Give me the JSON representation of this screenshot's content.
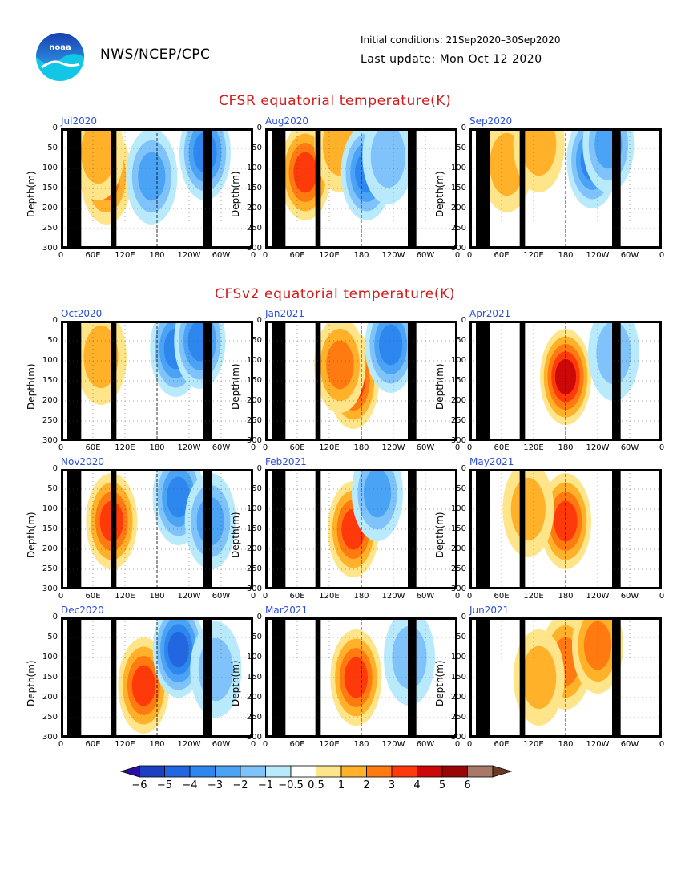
{
  "header": {
    "org": "NWS/NCEP/CPC",
    "initial_conditions": "Initial conditions: 21Sep2020–30Sep2020",
    "last_update": "Last update: Mon Oct 12 2020",
    "logo_text": "noaa"
  },
  "section_titles": {
    "cfsr": "CFSR equatorial temperature(K)",
    "cfsv2": "CFSv2 equatorial temperature(K)"
  },
  "axis": {
    "ylabel": "Depth(m)",
    "y_ticks": [
      "0",
      "50",
      "100",
      "150",
      "200",
      "250",
      "300"
    ],
    "x_ticks": [
      "0",
      "60E",
      "120E",
      "180",
      "120W",
      "60W",
      "0"
    ]
  },
  "colorbar": {
    "labels": [
      "−6",
      "−5",
      "−4",
      "−3",
      "−2",
      "−1",
      "−0.5",
      "0.5",
      "1",
      "2",
      "3",
      "4",
      "5",
      "6"
    ],
    "colors": [
      "#2a0fa5",
      "#1d3fc4",
      "#2266e0",
      "#2e86ef",
      "#4aa3f5",
      "#7fc3fa",
      "#b8eafc",
      "#ffffff",
      "#ffe58a",
      "#ffb12a",
      "#ff7a10",
      "#ff3a0a",
      "#cc0808",
      "#9a0606",
      "#a87868",
      "#6b3a22"
    ]
  },
  "chart_data": [
    {
      "type": "heatmap",
      "title": "Jul2020",
      "source": "CFSR",
      "ylim": [
        0,
        300
      ],
      "xlim": [
        "0",
        "0"
      ],
      "blobs": [
        {
          "lon": 85,
          "depth": 120,
          "anomaly": 2.5
        },
        {
          "lon": 70,
          "depth": 60,
          "anomaly": 1
        },
        {
          "lon": 170,
          "depth": 120,
          "anomaly": -1.5
        },
        {
          "lon": 270,
          "depth": 60,
          "anomaly": -2
        }
      ]
    },
    {
      "type": "heatmap",
      "title": "Aug2020",
      "source": "CFSR",
      "ylim": [
        0,
        300
      ],
      "xlim": [
        "0",
        "0"
      ],
      "blobs": [
        {
          "lon": 75,
          "depth": 110,
          "anomaly": 3
        },
        {
          "lon": 140,
          "depth": 40,
          "anomaly": 1
        },
        {
          "lon": 190,
          "depth": 110,
          "anomaly": -2
        },
        {
          "lon": 230,
          "depth": 70,
          "anomaly": -1
        }
      ]
    },
    {
      "type": "heatmap",
      "title": "Sep2020",
      "source": "CFSR",
      "ylim": [
        0,
        300
      ],
      "xlim": [
        "0",
        "0"
      ],
      "blobs": [
        {
          "lon": 70,
          "depth": 90,
          "anomaly": 1
        },
        {
          "lon": 130,
          "depth": 40,
          "anomaly": 1
        },
        {
          "lon": 230,
          "depth": 80,
          "anomaly": -2
        },
        {
          "lon": 260,
          "depth": 40,
          "anomaly": -1.5
        }
      ]
    },
    {
      "type": "heatmap",
      "title": "Oct2020",
      "source": "CFSv2",
      "ylim": [
        0,
        300
      ],
      "xlim": [
        "0",
        "0"
      ],
      "blobs": [
        {
          "lon": 75,
          "depth": 90,
          "anomaly": 1.5
        },
        {
          "lon": 215,
          "depth": 70,
          "anomaly": -2
        },
        {
          "lon": 260,
          "depth": 50,
          "anomaly": -2
        }
      ]
    },
    {
      "type": "heatmap",
      "title": "Jan2021",
      "source": "CFSv2",
      "ylim": [
        0,
        300
      ],
      "xlim": [
        "0",
        "0"
      ],
      "blobs": [
        {
          "lon": 165,
          "depth": 150,
          "anomaly": 3.5
        },
        {
          "lon": 140,
          "depth": 110,
          "anomaly": 2
        },
        {
          "lon": 235,
          "depth": 60,
          "anomaly": -2.5
        }
      ]
    },
    {
      "type": "heatmap",
      "title": "Apr2021",
      "source": "CFSv2",
      "ylim": [
        0,
        300
      ],
      "xlim": [
        "0",
        "0"
      ],
      "blobs": [
        {
          "lon": 180,
          "depth": 140,
          "anomaly": 4
        },
        {
          "lon": 270,
          "depth": 80,
          "anomaly": -1
        }
      ]
    },
    {
      "type": "heatmap",
      "title": "Nov2020",
      "source": "CFSv2",
      "ylim": [
        0,
        300
      ],
      "xlim": [
        "0",
        "0"
      ],
      "blobs": [
        {
          "lon": 95,
          "depth": 130,
          "anomaly": 3
        },
        {
          "lon": 220,
          "depth": 70,
          "anomaly": -2.5
        },
        {
          "lon": 280,
          "depth": 130,
          "anomaly": -1.5
        }
      ]
    },
    {
      "type": "heatmap",
      "title": "Feb2021",
      "source": "CFSv2",
      "ylim": [
        0,
        300
      ],
      "xlim": [
        "0",
        "0"
      ],
      "blobs": [
        {
          "lon": 165,
          "depth": 150,
          "anomaly": 3
        },
        {
          "lon": 210,
          "depth": 60,
          "anomaly": -1.5
        }
      ]
    },
    {
      "type": "heatmap",
      "title": "May2021",
      "source": "CFSv2",
      "ylim": [
        0,
        300
      ],
      "xlim": [
        "0",
        "0"
      ],
      "blobs": [
        {
          "lon": 180,
          "depth": 130,
          "anomaly": 3
        },
        {
          "lon": 110,
          "depth": 100,
          "anomaly": 1
        }
      ]
    },
    {
      "type": "heatmap",
      "title": "Dec2020",
      "source": "CFSv2",
      "ylim": [
        0,
        300
      ],
      "xlim": [
        "0",
        "0"
      ],
      "blobs": [
        {
          "lon": 155,
          "depth": 170,
          "anomaly": 3.5
        },
        {
          "lon": 220,
          "depth": 80,
          "anomaly": -3
        },
        {
          "lon": 290,
          "depth": 130,
          "anomaly": -1
        }
      ]
    },
    {
      "type": "heatmap",
      "title": "Mar2021",
      "source": "CFSv2",
      "ylim": [
        0,
        300
      ],
      "xlim": [
        "0",
        "0"
      ],
      "blobs": [
        {
          "lon": 170,
          "depth": 150,
          "anomaly": 3.5
        },
        {
          "lon": 270,
          "depth": 100,
          "anomaly": -1
        }
      ]
    },
    {
      "type": "heatmap",
      "title": "Jun2021",
      "source": "CFSv2",
      "ylim": [
        0,
        300
      ],
      "xlim": [
        "0",
        "0"
      ],
      "blobs": [
        {
          "lon": 180,
          "depth": 110,
          "anomaly": 2
        },
        {
          "lon": 240,
          "depth": 70,
          "anomaly": 2.5
        },
        {
          "lon": 130,
          "depth": 150,
          "anomaly": 1
        }
      ]
    }
  ]
}
